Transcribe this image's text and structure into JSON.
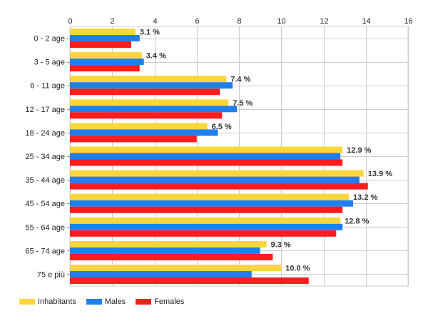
{
  "chart_data": {
    "type": "bar",
    "orientation": "horizontal",
    "categories": [
      "0 - 2 age",
      "3 - 5 age",
      "6 - 11 age",
      "12 - 17 age",
      "18 - 24 age",
      "25 - 34 age",
      "35 - 44 age",
      "45 - 54 age",
      "55 - 64 age",
      "65 - 74 age",
      "75 e più"
    ],
    "series": [
      {
        "name": "Inhabitants",
        "color": "#fad63c",
        "values": [
          3.1,
          3.4,
          7.4,
          7.5,
          6.5,
          12.9,
          13.9,
          13.2,
          12.8,
          9.3,
          10.0
        ]
      },
      {
        "name": "Males",
        "color": "#1f7fef",
        "values": [
          3.3,
          3.5,
          7.7,
          7.9,
          7.0,
          12.8,
          13.7,
          13.4,
          12.9,
          9.0,
          8.6
        ]
      },
      {
        "name": "Females",
        "color": "#fe1c1c",
        "values": [
          2.9,
          3.3,
          7.1,
          7.2,
          6.0,
          12.9,
          14.1,
          12.9,
          12.6,
          9.6,
          11.3
        ]
      }
    ],
    "data_labels": [
      "3.1 %",
      "3.4 %",
      "7.4 %",
      "7.5 %",
      "6.5 %",
      "12.9 %",
      "13.9 %",
      "13.2 %",
      "12.8 %",
      "9.3 %",
      "10.0 %"
    ],
    "x_ticks": [
      "0",
      "2",
      "4",
      "6",
      "8",
      "10",
      "12",
      "14",
      "16"
    ],
    "xlim": [
      0,
      16
    ],
    "grid": true,
    "legend_position": "bottom-left"
  }
}
